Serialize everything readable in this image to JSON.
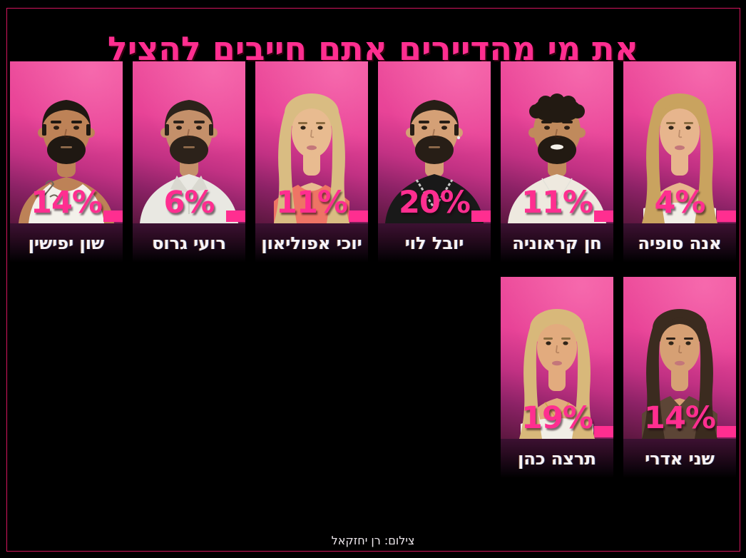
{
  "page": {
    "title": "את מי מהדיירים אתם חייבים להציל",
    "credit": "צילום: רן יחזקאל",
    "colors": {
      "accent": "#ff2e90",
      "frame_border": "#d4155e",
      "background": "#000000",
      "photo_pink_top": "#f0549c",
      "photo_pink_bottom": "#5c173f",
      "name_bar_top": "#3c1132"
    }
  },
  "contestants": [
    {
      "name": "אנה סופיה",
      "percent": "4%",
      "avatar": {
        "type": "f",
        "hair": "#c9a35f",
        "brow": "#8a6b40",
        "skin": "#e7b58d",
        "shirt": "#f2efe7",
        "wear": "cami"
      }
    },
    {
      "name": "חן קראוניה",
      "percent": "11%",
      "avatar": {
        "type": "m",
        "hairStyle": "curly",
        "hair": "#221a12",
        "skin": "#c08a5c",
        "shirt": "#eee9df",
        "wear": "tee",
        "beard": true,
        "smile": true,
        "chain": "thin"
      }
    },
    {
      "name": "יובל לוי",
      "percent": "20%",
      "avatar": {
        "type": "m",
        "hair": "#271e16",
        "skin": "#d4a076",
        "shirt": "#191919",
        "wear": "tee",
        "beard": true,
        "chain": "thick",
        "earring": true
      }
    },
    {
      "name": "יוכי אפוליאון",
      "percent": "11%",
      "avatar": {
        "type": "f",
        "hair": "#d9bc82",
        "brow": "#8a6b40",
        "skin": "#e8bb90",
        "shirt": "#ee7465",
        "wear": "tank"
      }
    },
    {
      "name": "רועי גרוס",
      "percent": "6%",
      "avatar": {
        "type": "m",
        "hair": "#2c221a",
        "skin": "#c4906a",
        "shirt": "#e9e8e2",
        "wear": "polo",
        "beard": true
      }
    },
    {
      "name": "שון יפישין",
      "percent": "14%",
      "avatar": {
        "type": "m",
        "hair": "#1f1812",
        "skin": "#bd8257",
        "shirt": "#f3f1ea",
        "wear": "tank",
        "beard": true,
        "tattoo": true
      }
    },
    {
      "name": "שני אדרי",
      "percent": "14%",
      "avatar": {
        "type": "f",
        "hair": "#3b2b1f",
        "brow": "#2e2118",
        "skin": "#d6a074",
        "shirt": "#5c4536",
        "wear": "button"
      }
    },
    {
      "name": "תרצה כהן",
      "percent": "19%",
      "avatar": {
        "type": "f",
        "hair": "#d8b87a",
        "brow": "#8a6b40",
        "skin": "#e2ab7e",
        "shirt": "#f1eee6",
        "wear": "cami",
        "necklace": "gold"
      }
    }
  ],
  "chart_data": {
    "type": "bar",
    "title": "את מי מהדיירים אתם חייבים להציל",
    "categories": [
      "אנה סופיה",
      "חן קראוניה",
      "יובל לוי",
      "יוכי אפוליאון",
      "רועי גרוס",
      "שון יפישין",
      "שני אדרי",
      "תרצה כהן"
    ],
    "values": [
      4,
      11,
      20,
      11,
      6,
      14,
      14,
      19
    ],
    "unit": "%"
  }
}
